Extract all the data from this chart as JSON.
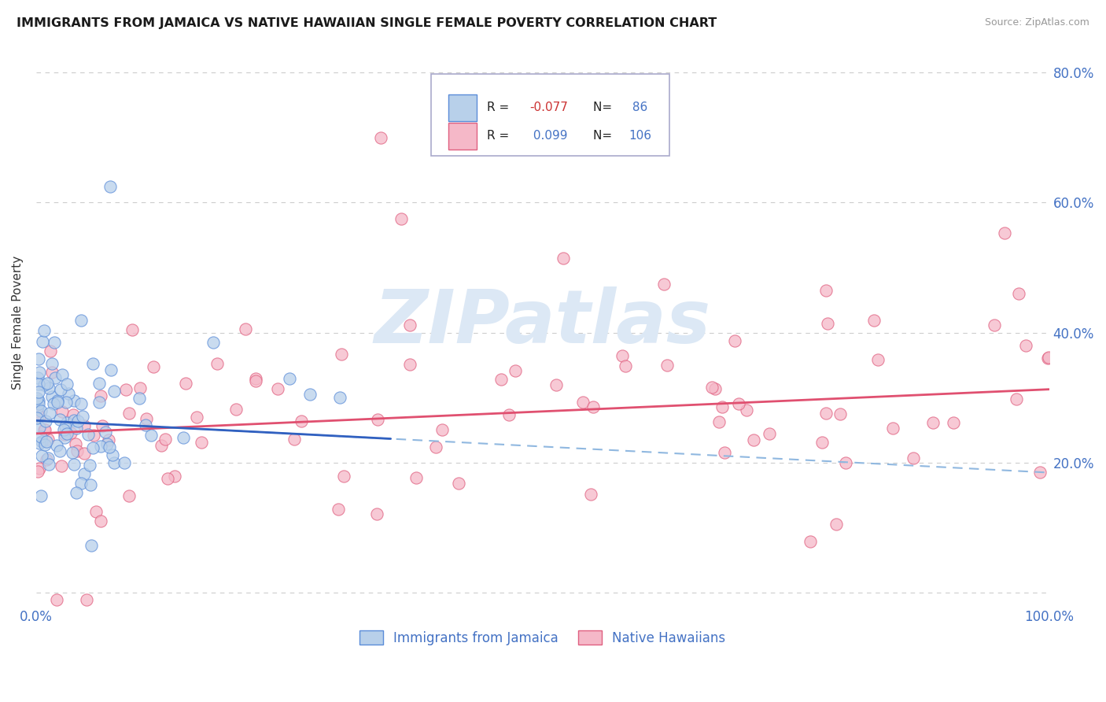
{
  "title": "IMMIGRANTS FROM JAMAICA VS NATIVE HAWAIIAN SINGLE FEMALE POVERTY CORRELATION CHART",
  "source": "Source: ZipAtlas.com",
  "legend_label1": "Immigrants from Jamaica",
  "legend_label2": "Native Hawaiians",
  "r1": -0.077,
  "n1": 86,
  "r2": 0.099,
  "n2": 106,
  "color_blue_fill": "#b8d0ea",
  "color_blue_edge": "#5b8dd9",
  "color_pink_fill": "#f5b8c8",
  "color_pink_edge": "#e06080",
  "color_blue_line": "#3060c0",
  "color_pink_line": "#e05070",
  "color_blue_dashed": "#90b8e0",
  "color_text_blue": "#4472c4",
  "color_text_red": "#cc3333",
  "color_grid": "#cccccc",
  "watermark_color": "#dce8f5",
  "xlim": [
    0.0,
    1.0
  ],
  "ylim": [
    -0.02,
    0.85
  ],
  "ytick_vals": [
    0.0,
    0.2,
    0.4,
    0.6,
    0.8
  ],
  "ytick_labels_right": [
    "",
    "20.0%",
    "40.0%",
    "60.0%",
    "80.0%"
  ],
  "jamaica_slope": -0.08,
  "jamaica_intercept": 0.265,
  "hawaii_slope": 0.068,
  "hawaii_intercept": 0.245
}
